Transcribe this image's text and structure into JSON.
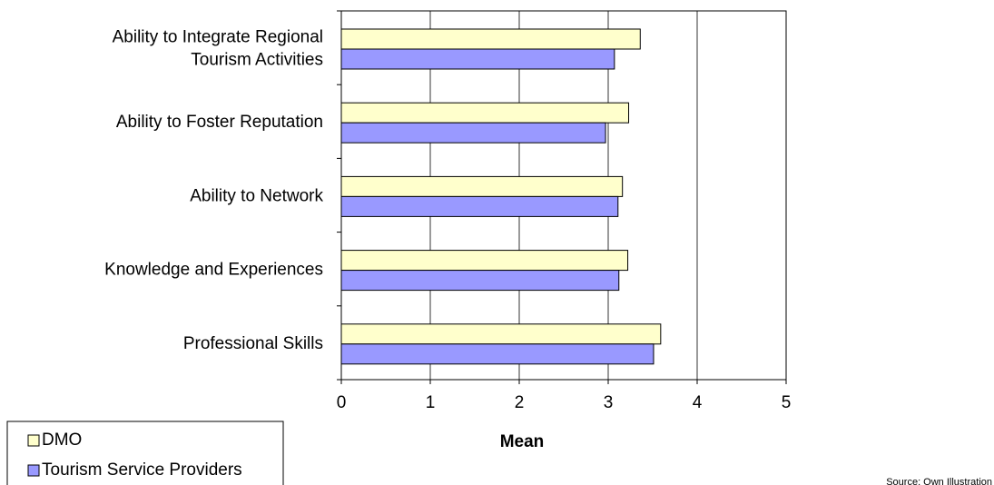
{
  "chart_data": {
    "type": "bar",
    "orientation": "horizontal",
    "categories": [
      "Ability to Integrate Regional\nTourism Activities",
      "Ability to Foster Reputation",
      "Ability to Network",
      "Knowledge and Experiences",
      "Professional Skills"
    ],
    "series": [
      {
        "name": "DMO",
        "color": "#ffffcc",
        "values": [
          3.36,
          3.23,
          3.16,
          3.22,
          3.59
        ]
      },
      {
        "name": "Tourism Service Providers",
        "color": "#9999ff",
        "values": [
          3.07,
          2.97,
          3.11,
          3.12,
          3.51
        ]
      }
    ],
    "xlabel": "Mean",
    "xlim": [
      0,
      5
    ],
    "xticks": [
      0,
      1,
      2,
      3,
      4,
      5
    ],
    "grid": true,
    "legend": "bottom-left",
    "source": "Source: Own Illustration"
  }
}
